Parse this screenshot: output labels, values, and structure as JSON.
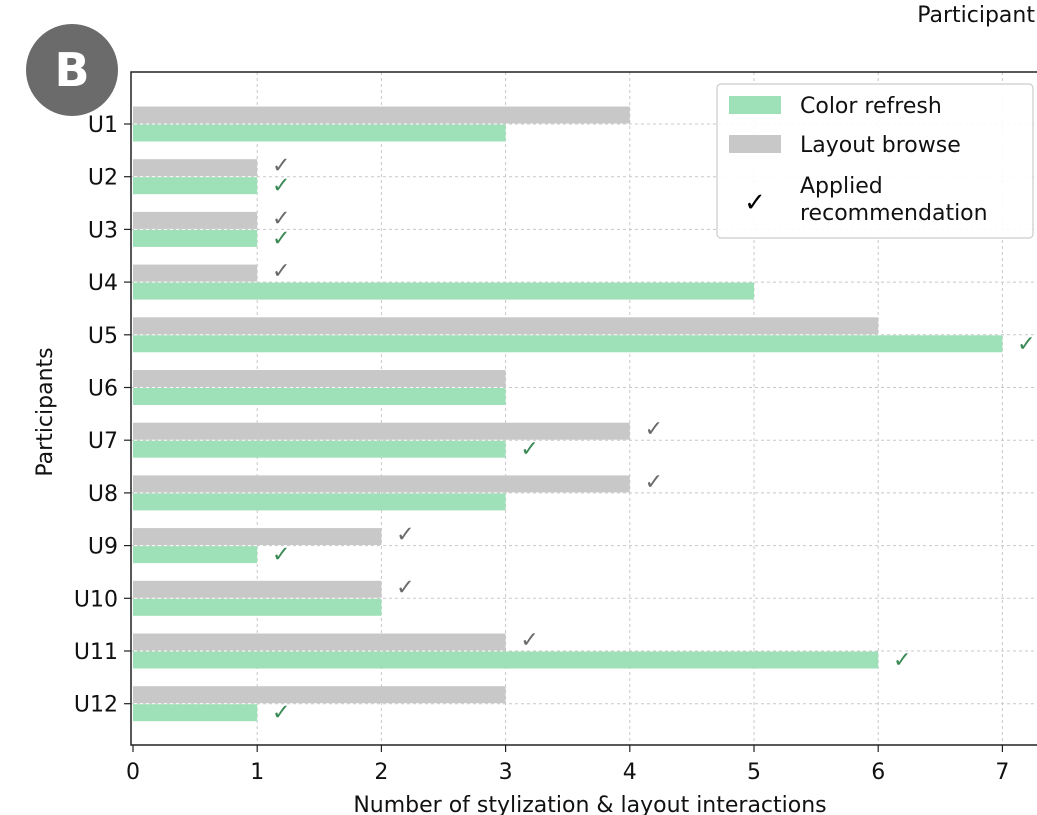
{
  "panel_label": "B",
  "header_text": "Participant",
  "colors": {
    "color_refresh": "#9ee0b8",
    "layout_browse": "#c8c8c8",
    "check_green": "#3a8a55",
    "check_gray": "#6a6a6a",
    "panel_badge": "#6b6b6b"
  },
  "chart_data": {
    "type": "bar",
    "orientation": "horizontal",
    "categories": [
      "U1",
      "U2",
      "U3",
      "U4",
      "U5",
      "U6",
      "U7",
      "U8",
      "U9",
      "U10",
      "U11",
      "U12"
    ],
    "series": [
      {
        "name": "Layout browse",
        "values": [
          4,
          1,
          1,
          1,
          6,
          3,
          4,
          4,
          2,
          2,
          3,
          3
        ],
        "applied": [
          false,
          true,
          true,
          true,
          false,
          false,
          true,
          true,
          true,
          true,
          true,
          false
        ]
      },
      {
        "name": "Color refresh",
        "values": [
          3,
          1,
          1,
          5,
          7,
          3,
          3,
          3,
          1,
          2,
          6,
          1
        ],
        "applied": [
          false,
          true,
          true,
          false,
          true,
          false,
          true,
          false,
          true,
          false,
          true,
          true
        ]
      }
    ],
    "xlabel": "Number of stylization & layout interactions",
    "ylabel": "Participants",
    "xlim": [
      0,
      7.3
    ],
    "xticks": [
      "0",
      "1",
      "2",
      "3",
      "4",
      "5",
      "6",
      "7"
    ],
    "grid": true,
    "legend": {
      "placement": "top-right",
      "entries": [
        {
          "label": "Color refresh",
          "marker": "bar",
          "color_key": "color_refresh"
        },
        {
          "label": "Layout browse",
          "marker": "bar",
          "color_key": "layout_browse"
        },
        {
          "label": "Applied\nrecommendation",
          "marker": "check"
        }
      ]
    },
    "check_mark": "✓"
  }
}
